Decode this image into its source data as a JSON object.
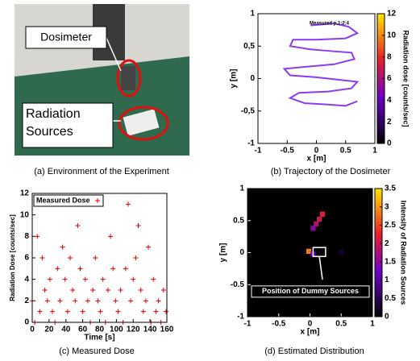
{
  "photo": {
    "labels": [
      "Dosimeter",
      "Radiation Sources"
    ],
    "caption": "(a) Environment of the Experiment"
  },
  "chart_data": [
    {
      "type": "line",
      "caption": "(b) Trajectory of the Dosimeter",
      "xlabel": "x [m]",
      "ylabel": "y [m]",
      "xlim": [
        -1,
        1
      ],
      "ylim": [
        -1,
        1
      ],
      "xticks": [
        -1,
        -0.5,
        0,
        0.5,
        1
      ],
      "yticks": [
        -1,
        {
          "value": -0.5,
          "label": "-0,5"
        },
        0,
        {
          "value": 0.5,
          "label": "0,5"
        },
        1
      ],
      "legend": "Measured p.1:2:4",
      "series": [
        {
          "color": "#8c3cf0",
          "x": [
            -0.1,
            0.3,
            0.55,
            0.7,
            0.5,
            0,
            -0.4,
            -0.45,
            -0.1,
            0.3,
            0.6,
            0.65,
            0.3,
            -0.2,
            -0.55,
            -0.45,
            0,
            0.4,
            0.7,
            0.6,
            0.2,
            -0.3,
            -0.45,
            -0.2,
            0.2,
            0.5,
            0.7
          ],
          "y": [
            0.82,
            0.85,
            0.8,
            0.7,
            0.62,
            0.6,
            0.6,
            0.5,
            0.45,
            0.42,
            0.4,
            0.3,
            0.22,
            0.18,
            0.15,
            0.05,
            0.02,
            -0.02,
            -0.05,
            -0.15,
            -0.2,
            -0.22,
            -0.3,
            -0.38,
            -0.4,
            -0.42,
            -0.35
          ]
        }
      ],
      "colorbar": {
        "label": "Radiation dose [counts/sec]",
        "lim": [
          0,
          12
        ],
        "ticks": [
          0,
          2,
          4,
          6,
          8,
          10,
          12
        ]
      }
    },
    {
      "type": "scatter",
      "caption": "(c) Measured Dose",
      "xlabel": "Time [s]",
      "ylabel": "Radiation Dose [counts/sec]",
      "xlim": [
        0,
        160
      ],
      "ylim": [
        0,
        12
      ],
      "xticks": [
        0,
        20,
        40,
        60,
        80,
        100,
        120,
        140,
        160
      ],
      "yticks": [
        0,
        2,
        4,
        6,
        8,
        10,
        12
      ],
      "series": [
        {
          "name": "Measured Dose",
          "color": "#e00000",
          "x": [
            0,
            3,
            6,
            9,
            12,
            15,
            18,
            21,
            24,
            27,
            30,
            33,
            36,
            39,
            42,
            45,
            48,
            51,
            54,
            57,
            60,
            63,
            66,
            69,
            72,
            75,
            78,
            81,
            84,
            87,
            90,
            93,
            96,
            99,
            102,
            105,
            108,
            111,
            114,
            117,
            120,
            123,
            126,
            129,
            132,
            135,
            138,
            141,
            144,
            147,
            150,
            153,
            156,
            159
          ],
          "y": [
            2,
            0,
            8,
            1,
            6,
            3,
            2,
            4,
            1,
            0,
            5,
            2,
            7,
            4,
            1,
            6,
            3,
            2,
            9,
            5,
            1,
            4,
            2,
            0,
            3,
            6,
            2,
            1,
            4,
            0,
            3,
            8,
            5,
            2,
            1,
            3,
            0,
            5,
            11,
            2,
            4,
            6,
            9,
            3,
            1,
            2,
            7,
            0,
            4,
            1,
            2,
            0,
            3,
            1
          ]
        }
      ]
    },
    {
      "type": "heatmap",
      "caption": "(d) Estimated Distribution",
      "xlabel": "x [m]",
      "ylabel": "y [m]",
      "xlim": [
        -1,
        1
      ],
      "ylim": [
        -1,
        1
      ],
      "xticks": [
        -1,
        -0.5,
        0,
        0.5,
        1
      ],
      "yticks": [
        -1,
        -0.5,
        0,
        0.5,
        1
      ],
      "annotation": "Position of Dummy Sources",
      "cells": {
        "x": [
          0.2,
          0.15,
          0.1,
          0.05,
          -0.02,
          0.05,
          0.5
        ],
        "y": [
          0.6,
          0.52,
          0.45,
          0.38,
          0.02,
          -0.02,
          0.0
        ],
        "values": [
          2.2,
          2.0,
          1.8,
          1.5,
          2.8,
          1.2,
          0.3
        ]
      },
      "colorbar": {
        "label": "Intensity of Radiation Sources",
        "lim": [
          0,
          3.5
        ],
        "ticks": [
          0,
          0.5,
          1,
          1.5,
          2,
          2.5,
          3,
          3.5
        ]
      }
    }
  ]
}
